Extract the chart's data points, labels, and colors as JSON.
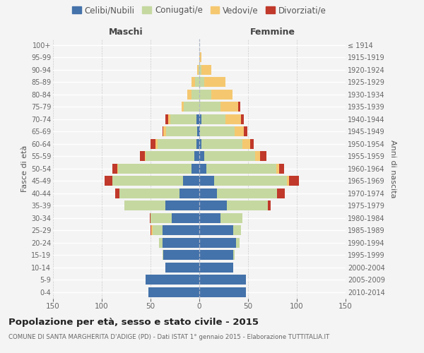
{
  "age_groups_bottom_to_top": [
    "0-4",
    "5-9",
    "10-14",
    "15-19",
    "20-24",
    "25-29",
    "30-34",
    "35-39",
    "40-44",
    "45-49",
    "50-54",
    "55-59",
    "60-64",
    "65-69",
    "70-74",
    "75-79",
    "80-84",
    "85-89",
    "90-94",
    "95-99",
    "100+"
  ],
  "birth_years_bottom_to_top": [
    "2010-2014",
    "2005-2009",
    "2000-2004",
    "1995-1999",
    "1990-1994",
    "1985-1989",
    "1980-1984",
    "1975-1979",
    "1970-1974",
    "1965-1969",
    "1960-1964",
    "1955-1959",
    "1950-1954",
    "1945-1949",
    "1940-1944",
    "1935-1939",
    "1930-1934",
    "1925-1929",
    "1920-1924",
    "1915-1919",
    "≤ 1914"
  ],
  "maschi": {
    "celibi": [
      52,
      55,
      35,
      37,
      38,
      38,
      28,
      35,
      20,
      17,
      8,
      5,
      3,
      2,
      3,
      0,
      0,
      0,
      0,
      0,
      0
    ],
    "coniugati": [
      0,
      0,
      0,
      1,
      3,
      10,
      22,
      42,
      62,
      72,
      75,
      50,
      40,
      32,
      27,
      16,
      8,
      4,
      1,
      0,
      0
    ],
    "vedovi": [
      0,
      0,
      0,
      0,
      0,
      1,
      0,
      0,
      0,
      0,
      1,
      1,
      2,
      3,
      2,
      2,
      4,
      4,
      1,
      0,
      0
    ],
    "divorziati": [
      0,
      0,
      0,
      0,
      0,
      1,
      1,
      0,
      4,
      8,
      5,
      5,
      5,
      1,
      3,
      0,
      0,
      0,
      0,
      0,
      0
    ]
  },
  "femmine": {
    "nubili": [
      48,
      48,
      35,
      35,
      38,
      35,
      22,
      28,
      18,
      15,
      7,
      5,
      2,
      1,
      2,
      0,
      0,
      0,
      0,
      0,
      0
    ],
    "coniugate": [
      0,
      0,
      0,
      1,
      3,
      8,
      22,
      42,
      62,
      75,
      72,
      52,
      42,
      35,
      25,
      22,
      12,
      5,
      2,
      0,
      0
    ],
    "vedove": [
      0,
      0,
      0,
      0,
      0,
      0,
      0,
      0,
      0,
      2,
      3,
      5,
      8,
      10,
      16,
      18,
      22,
      22,
      10,
      2,
      0
    ],
    "divorziate": [
      0,
      0,
      0,
      0,
      0,
      0,
      0,
      3,
      8,
      10,
      5,
      7,
      4,
      3,
      3,
      2,
      0,
      0,
      0,
      0,
      0
    ]
  },
  "colors": {
    "celibi": "#4472aa",
    "coniugati": "#c5d8a0",
    "vedovi": "#f5c870",
    "divorziati": "#c0392b"
  },
  "xlim": 150,
  "title": "Popolazione per età, sesso e stato civile - 2015",
  "subtitle": "COMUNE DI SANTA MARGHERITA D'ADIGE (PD) - Dati ISTAT 1° gennaio 2015 - Elaborazione TUTTITALIA.IT",
  "ylabel_left": "Fasce di età",
  "ylabel_right": "Anni di nascita",
  "xlabel_maschi": "Maschi",
  "xlabel_femmine": "Femmine",
  "legend_labels": [
    "Celibi/Nubili",
    "Coniugati/e",
    "Vedovi/e",
    "Divorziati/e"
  ],
  "bg_color": "#f4f4f4",
  "bar_height": 0.82
}
